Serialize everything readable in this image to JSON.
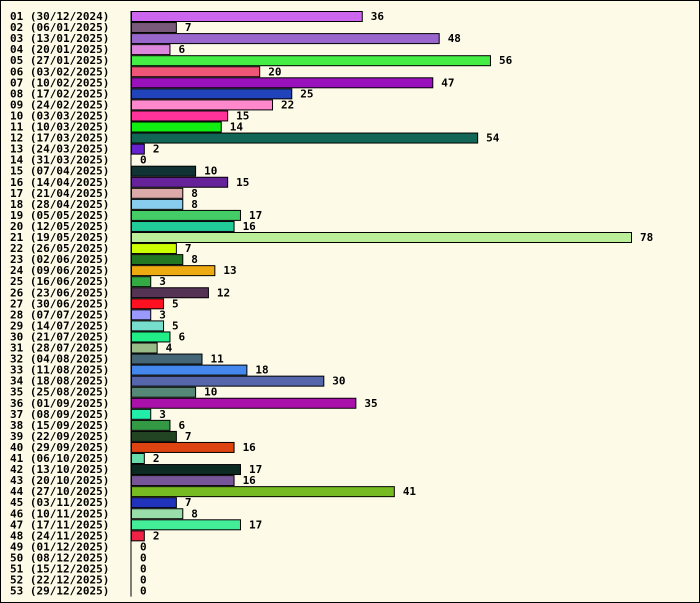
{
  "chart_data": {
    "type": "bar",
    "orientation": "horizontal",
    "title": "",
    "xlabel": "",
    "ylabel": "",
    "grid": false,
    "legend": "none",
    "xlim": [
      0,
      78
    ],
    "categories": [
      "01 (30/12/2024)",
      "02 (06/01/2025)",
      "03 (13/01/2025)",
      "04 (20/01/2025)",
      "05 (27/01/2025)",
      "06 (03/02/2025)",
      "07 (10/02/2025)",
      "08 (17/02/2025)",
      "09 (24/02/2025)",
      "10 (03/03/2025)",
      "11 (10/03/2025)",
      "12 (17/03/2025)",
      "13 (24/03/2025)",
      "14 (31/03/2025)",
      "15 (07/04/2025)",
      "16 (14/04/2025)",
      "17 (21/04/2025)",
      "18 (28/04/2025)",
      "19 (05/05/2025)",
      "20 (12/05/2025)",
      "21 (19/05/2025)",
      "22 (26/05/2025)",
      "23 (02/06/2025)",
      "24 (09/06/2025)",
      "25 (16/06/2025)",
      "26 (23/06/2025)",
      "27 (30/06/2025)",
      "28 (07/07/2025)",
      "29 (14/07/2025)",
      "30 (21/07/2025)",
      "31 (28/07/2025)",
      "32 (04/08/2025)",
      "33 (11/08/2025)",
      "34 (18/08/2025)",
      "35 (25/08/2025)",
      "36 (01/09/2025)",
      "37 (08/09/2025)",
      "38 (15/09/2025)",
      "39 (22/09/2025)",
      "40 (29/09/2025)",
      "41 (06/10/2025)",
      "42 (13/10/2025)",
      "43 (20/10/2025)",
      "44 (27/10/2025)",
      "45 (03/11/2025)",
      "46 (10/11/2025)",
      "47 (17/11/2025)",
      "48 (24/11/2025)",
      "49 (01/12/2025)",
      "50 (08/12/2025)",
      "51 (15/12/2025)",
      "52 (22/12/2025)",
      "53 (29/12/2025)"
    ],
    "values": [
      36,
      7,
      48,
      6,
      56,
      20,
      47,
      25,
      22,
      15,
      14,
      54,
      2,
      0,
      10,
      15,
      8,
      8,
      17,
      16,
      78,
      7,
      8,
      13,
      3,
      12,
      5,
      3,
      5,
      6,
      4,
      11,
      18,
      30,
      10,
      35,
      3,
      6,
      7,
      16,
      2,
      17,
      16,
      41,
      7,
      8,
      17,
      2,
      0,
      0,
      0,
      0,
      0
    ],
    "colors": [
      "#cc66ee",
      "#7a5a7a",
      "#9966cc",
      "#dd88dd",
      "#44ee44",
      "#ee5577",
      "#9911bb",
      "#2244bb",
      "#ff88cc",
      "#ff3399",
      "#11ee11",
      "#116655",
      "#6622cc",
      "#ffffff",
      "#113333",
      "#662299",
      "#ddaaaa",
      "#88ccee",
      "#44cc66",
      "#22cc99",
      "#bbee99",
      "#ccff00",
      "#227722",
      "#eeaa11",
      "#33aa44",
      "#553355",
      "#ff1122",
      "#9999ff",
      "#77ddcc",
      "#22ee88",
      "#99bb88",
      "#446677",
      "#4488ee",
      "#5566aa",
      "#558877",
      "#aa11aa",
      "#22eeaa",
      "#339944",
      "#224422",
      "#dd4411",
      "#66ddaa",
      "#0a2a22",
      "#775599",
      "#77bb22",
      "#2233bb",
      "#99ddaa",
      "#44ee99",
      "#ee2244",
      "#ffffff",
      "#ffffff",
      "#ffffff",
      "#ffffff",
      "#ffffff"
    ]
  }
}
